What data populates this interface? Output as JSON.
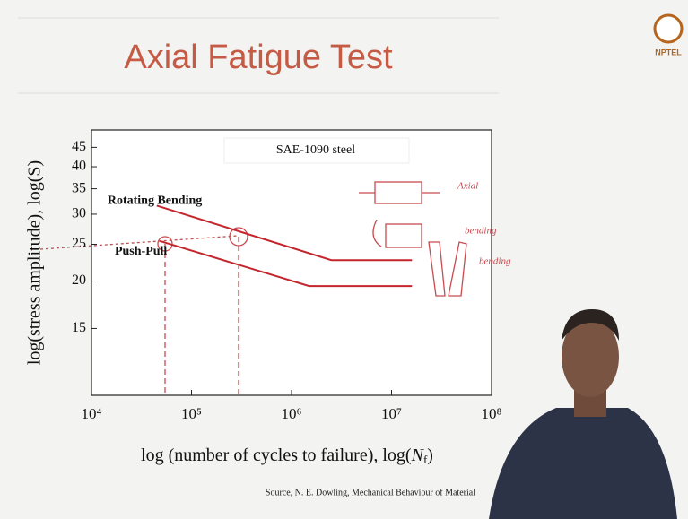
{
  "chart_data": {
    "type": "line",
    "title": "Axial Fatigue Test",
    "subtitle": "SAE-1090 steel",
    "y_label": "log(stress amplitude), log(S)",
    "x_label": [
      "log (number of cycles to failure), log(",
      "N",
      "f",
      ")"
    ],
    "source": "Source, N. E. Dowling, Mechanical Behaviour of Material",
    "logo": "NPTEL",
    "annotations": [
      "Axial",
      "bending",
      "bending"
    ],
    "x_log": true,
    "y_log": true,
    "xlim": [
      10000,
      100000000
    ],
    "ylim": [
      10,
      50
    ],
    "xticks": [
      {
        "value": 10000,
        "label": "10⁴"
      },
      {
        "value": 100000,
        "label": "10⁵"
      },
      {
        "value": 1000000,
        "label": "10⁶"
      },
      {
        "value": 10000000,
        "label": "10⁷"
      },
      {
        "value": 100000000,
        "label": "10⁸"
      }
    ],
    "yticks": [
      15,
      20,
      25,
      30,
      35,
      40,
      45
    ],
    "series": [
      {
        "name": "Rotating Bending",
        "color": "#c3262d",
        "x": [
          45000,
          2500000,
          16000000
        ],
        "values": [
          31.6,
          22.7,
          22.7
        ]
      },
      {
        "name": "Push-Pull",
        "color": "#c3262d",
        "x": [
          48000,
          1500000,
          16000000
        ],
        "values": [
          25.5,
          19.4,
          19.4
        ]
      }
    ]
  }
}
